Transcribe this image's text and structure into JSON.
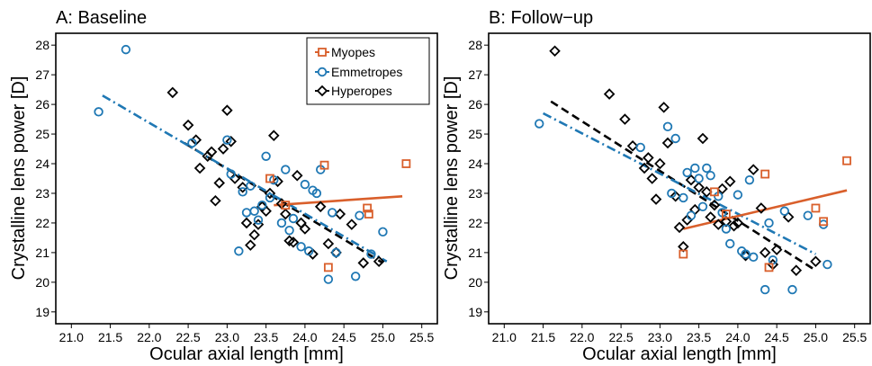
{
  "figure": {
    "xlabel": "Ocular axial length [mm]",
    "ylabel": "Crystalline lens power [D]"
  },
  "legend": {
    "placement": "top-right of panel A",
    "items": [
      {
        "label": "Myopes",
        "color": "#d95f2b",
        "marker": "square"
      },
      {
        "label": "Emmetropes",
        "color": "#1f78b4",
        "marker": "circle"
      },
      {
        "label": "Hyperopes",
        "color": "#000000",
        "marker": "diamond"
      }
    ]
  },
  "chart_data": [
    {
      "type": "scatter",
      "title": "A: Baseline",
      "xlabel": "Ocular axial length [mm]",
      "ylabel": "Crystalline lens power [D]",
      "xlim": [
        20.8,
        25.7
      ],
      "ylim": [
        18.6,
        28.4
      ],
      "xticks": [
        "21.0",
        "21.5",
        "22.0",
        "22.5",
        "23.0",
        "23.5",
        "24.0",
        "24.5",
        "25.0",
        "25.5"
      ],
      "yticks": [
        "19",
        "20",
        "21",
        "22",
        "23",
        "24",
        "25",
        "26",
        "27",
        "28"
      ],
      "grid": false,
      "series": [
        {
          "name": "Myopes",
          "color": "#d95f2b",
          "marker": "square",
          "line": "solid",
          "x": [
            23.55,
            23.75,
            24.25,
            24.3,
            24.8,
            24.82,
            25.3
          ],
          "y": [
            23.5,
            22.6,
            23.95,
            20.5,
            22.5,
            22.3,
            24.0
          ],
          "fit": [
            [
              23.6,
              22.6
            ],
            [
              25.25,
              22.9
            ]
          ]
        },
        {
          "name": "Emmetropes",
          "color": "#1f78b4",
          "marker": "circle",
          "line": "dashdot",
          "x": [
            21.35,
            21.7,
            22.55,
            23.0,
            23.05,
            23.15,
            23.2,
            23.25,
            23.3,
            23.35,
            23.4,
            23.45,
            23.5,
            23.55,
            23.6,
            23.7,
            23.75,
            23.8,
            23.85,
            23.95,
            24.0,
            24.05,
            24.1,
            24.15,
            24.2,
            24.3,
            24.35,
            24.4,
            24.65,
            24.7,
            24.85,
            25.0
          ],
          "y": [
            25.75,
            27.85,
            24.7,
            24.8,
            23.65,
            21.05,
            23.05,
            22.35,
            23.25,
            22.4,
            22.1,
            22.6,
            24.25,
            22.85,
            23.45,
            22.0,
            23.8,
            21.75,
            22.15,
            21.2,
            23.3,
            21.05,
            23.1,
            23.0,
            23.8,
            20.1,
            22.35,
            21.0,
            20.2,
            22.25,
            20.95,
            21.7
          ],
          "fit": [
            [
              21.4,
              26.3
            ],
            [
              25.05,
              20.7
            ]
          ]
        },
        {
          "name": "Hyperopes",
          "color": "#000000",
          "marker": "diamond",
          "line": "dashed",
          "x": [
            22.3,
            22.5,
            22.6,
            22.65,
            22.75,
            22.8,
            22.85,
            22.9,
            22.95,
            23.0,
            23.05,
            23.1,
            23.2,
            23.25,
            23.3,
            23.35,
            23.4,
            23.45,
            23.5,
            23.55,
            23.6,
            23.65,
            23.7,
            23.75,
            23.8,
            23.85,
            23.9,
            23.95,
            24.0,
            24.1,
            24.2,
            24.3,
            24.4,
            24.45,
            24.6,
            24.75,
            24.95
          ],
          "y": [
            26.4,
            25.3,
            24.8,
            23.85,
            24.25,
            24.4,
            22.75,
            23.35,
            24.5,
            25.8,
            24.75,
            23.5,
            23.2,
            22.0,
            21.25,
            21.6,
            21.95,
            22.55,
            22.4,
            23.0,
            24.95,
            23.4,
            22.65,
            22.3,
            21.4,
            21.35,
            23.6,
            22.0,
            21.8,
            20.95,
            22.55,
            21.3,
            21.0,
            22.3,
            21.95,
            20.65,
            20.7
          ],
          "fit": [
            [
              22.45,
              24.7
            ],
            [
              25.0,
              20.65
            ]
          ]
        }
      ]
    },
    {
      "type": "scatter",
      "title": "B: Follow−up",
      "xlabel": "Ocular axial length [mm]",
      "ylabel": "Crystalline lens power [D]",
      "xlim": [
        20.8,
        25.7
      ],
      "ylim": [
        18.6,
        28.4
      ],
      "xticks": [
        "21.0",
        "21.5",
        "22.0",
        "22.5",
        "23.0",
        "23.5",
        "24.0",
        "24.5",
        "25.0",
        "25.5"
      ],
      "yticks": [
        "19",
        "20",
        "21",
        "22",
        "23",
        "24",
        "25",
        "26",
        "27",
        "28"
      ],
      "grid": false,
      "series": [
        {
          "name": "Myopes",
          "color": "#d95f2b",
          "marker": "square",
          "line": "solid",
          "x": [
            23.3,
            23.7,
            23.85,
            24.35,
            24.4,
            25.0,
            25.1,
            25.4
          ],
          "y": [
            20.95,
            23.05,
            22.3,
            23.65,
            20.5,
            22.5,
            22.05,
            24.1
          ],
          "fit": [
            [
              23.3,
              21.8
            ],
            [
              25.4,
              23.1
            ]
          ]
        },
        {
          "name": "Emmetropes",
          "color": "#1f78b4",
          "marker": "circle",
          "line": "dashdot",
          "x": [
            21.45,
            22.75,
            23.1,
            23.15,
            23.2,
            23.3,
            23.35,
            23.4,
            23.45,
            23.5,
            23.55,
            23.6,
            23.65,
            23.75,
            23.8,
            23.85,
            23.9,
            24.0,
            24.05,
            24.1,
            24.15,
            24.2,
            24.35,
            24.4,
            24.45,
            24.6,
            24.7,
            24.9,
            25.1,
            25.15
          ],
          "y": [
            25.35,
            24.55,
            25.25,
            23.0,
            24.85,
            22.85,
            23.7,
            22.25,
            23.85,
            23.5,
            22.55,
            23.85,
            23.6,
            22.9,
            22.35,
            21.8,
            21.3,
            22.95,
            21.05,
            20.95,
            23.45,
            20.85,
            19.75,
            22.0,
            20.75,
            22.4,
            19.75,
            22.25,
            21.95,
            20.6
          ],
          "fit": [
            [
              21.5,
              25.7
            ],
            [
              25.0,
              20.95
            ]
          ]
        },
        {
          "name": "Hyperopes",
          "color": "#000000",
          "marker": "diamond",
          "line": "dashed",
          "x": [
            21.65,
            22.35,
            22.55,
            22.65,
            22.8,
            22.85,
            22.9,
            22.95,
            23.0,
            23.05,
            23.1,
            23.2,
            23.25,
            23.3,
            23.35,
            23.4,
            23.45,
            23.5,
            23.55,
            23.6,
            23.65,
            23.7,
            23.75,
            23.8,
            23.85,
            23.9,
            23.95,
            24.0,
            24.1,
            24.2,
            24.3,
            24.35,
            24.45,
            24.5,
            24.65,
            24.75,
            25.0
          ],
          "y": [
            27.8,
            26.35,
            25.5,
            24.6,
            23.85,
            24.2,
            23.5,
            22.8,
            24.0,
            25.9,
            24.7,
            22.9,
            21.85,
            21.2,
            22.1,
            23.45,
            22.45,
            23.2,
            24.85,
            23.05,
            22.2,
            22.6,
            21.95,
            23.15,
            22.05,
            23.4,
            21.9,
            22.0,
            20.9,
            23.8,
            22.5,
            21.0,
            20.6,
            21.1,
            22.2,
            20.4,
            20.7
          ],
          "fit": [
            [
              21.6,
              26.1
            ],
            [
              25.0,
              20.4
            ]
          ]
        }
      ]
    }
  ]
}
